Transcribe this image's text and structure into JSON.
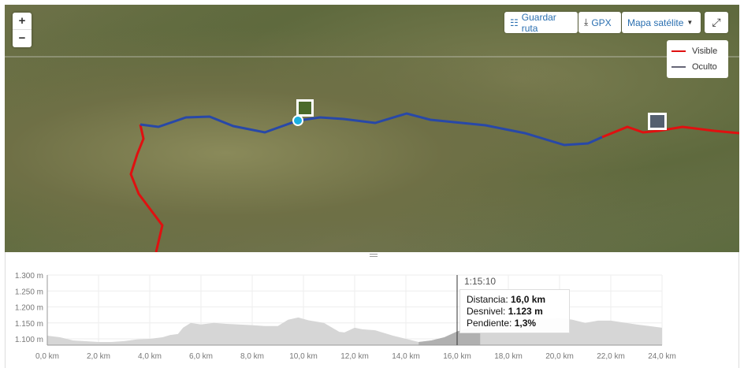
{
  "map": {
    "zoom_in": "+",
    "zoom_out": "−",
    "save_route": "Guardar ruta",
    "save_icon": "route-icon",
    "gpx": "GPX",
    "gpx_icon": "download-icon",
    "layer": "Mapa satélite",
    "fullscreen_icon": "expand-icon",
    "legend": [
      {
        "label": "Visible",
        "color": "#e01010"
      },
      {
        "label": "Oculto",
        "color": "#666677"
      }
    ],
    "route_hidden_color": "#2848a8",
    "route_visible_color": "#e01010"
  },
  "tooltip": {
    "time": "1:15:10",
    "distance_label": "Distancia:",
    "distance": "16,0 km",
    "elevation_label": "Desnivel:",
    "elevation": "1.123 m",
    "slope_label": "Pendiente:",
    "slope": "1,3%"
  },
  "chart_data": {
    "type": "area",
    "xlabel": "",
    "ylabel": "",
    "xlim": [
      0,
      24
    ],
    "ylim": [
      1080,
      1300
    ],
    "grid": true,
    "x_ticks": [
      "0,0 km",
      "2,0 km",
      "4,0 km",
      "6,0 km",
      "8,0 km",
      "10,0 km",
      "12,0 km",
      "14,0 km",
      "16,0 km",
      "18,0 km",
      "20,0 km",
      "22,0 km",
      "24,0 km"
    ],
    "y_ticks": [
      "1.300 m",
      "1.250 m",
      "1.200 m",
      "1.150 m",
      "1.100 m"
    ],
    "highlight_range": [
      14.5,
      16.9
    ],
    "cursor_x": 16.0,
    "x": [
      0,
      0.5,
      1,
      2,
      2.5,
      3,
      3.5,
      4,
      4.5,
      4.8,
      5.1,
      5.3,
      5.6,
      6,
      6.5,
      7,
      8,
      8.5,
      9,
      9.4,
      9.8,
      10.2,
      10.8,
      11.4,
      11.6,
      12,
      12.3,
      12.8,
      13.5,
      14,
      14.5,
      15,
      15.5,
      16,
      16.5,
      17,
      18,
      19,
      20,
      20.5,
      21,
      21.5,
      22,
      23,
      23.5,
      24
    ],
    "y": [
      1110,
      1105,
      1095,
      1090,
      1090,
      1093,
      1098,
      1100,
      1105,
      1112,
      1115,
      1135,
      1150,
      1145,
      1150,
      1147,
      1143,
      1140,
      1140,
      1160,
      1167,
      1158,
      1150,
      1122,
      1120,
      1135,
      1130,
      1127,
      1110,
      1100,
      1090,
      1095,
      1105,
      1123,
      1135,
      1140,
      1155,
      1162,
      1165,
      1160,
      1150,
      1157,
      1157,
      1145,
      1140,
      1135
    ]
  }
}
